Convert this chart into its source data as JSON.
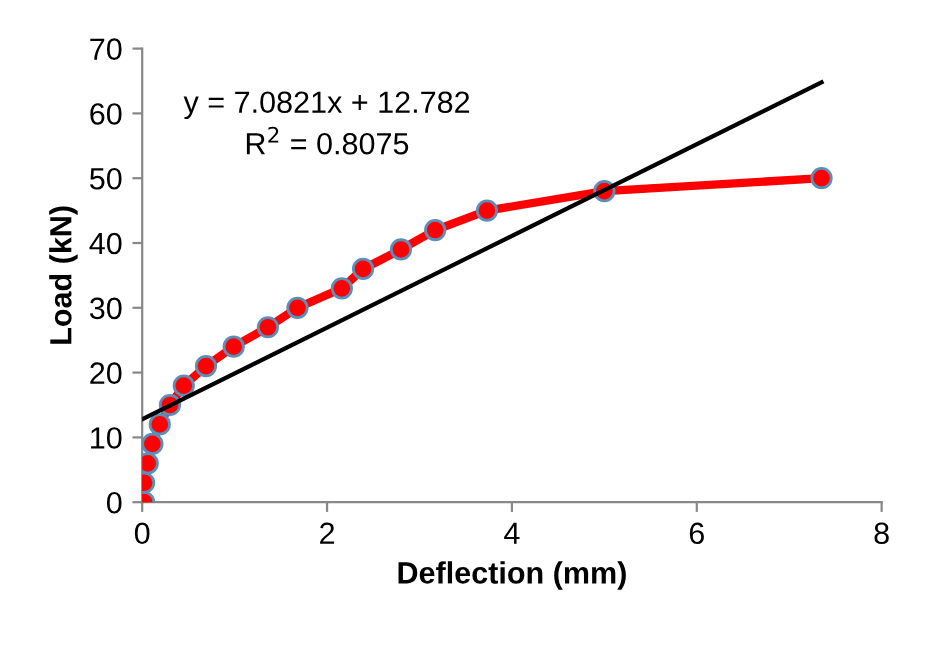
{
  "chart_data": {
    "type": "line",
    "xlabel": "Deflection (mm)",
    "ylabel": "Load (kN)",
    "xlim": [
      0,
      8
    ],
    "xticks": [
      0,
      2,
      4,
      6,
      8
    ],
    "ylim": [
      0,
      70
    ],
    "yticks": [
      0,
      10,
      20,
      30,
      40,
      50,
      60,
      70
    ],
    "grid": false,
    "legend": false,
    "series": [
      {
        "color": "#ff0000",
        "marker": "circle",
        "line_style": "solid",
        "x": [
          0.02,
          0.02,
          0.06,
          0.11,
          0.19,
          0.3,
          0.45,
          0.69,
          0.99,
          1.36,
          1.68,
          2.16,
          2.39,
          2.8,
          3.17,
          3.73,
          5.0,
          7.35
        ],
        "values": [
          0,
          3,
          6,
          9,
          12,
          15,
          18,
          21,
          24,
          27,
          30,
          33,
          36,
          39,
          42,
          45,
          48,
          50
        ]
      },
      {
        "color": "#000000",
        "marker": "none",
        "line_style": "solid",
        "x": [
          0,
          7.35
        ],
        "values": [
          12.8,
          64.8
        ]
      }
    ],
    "annotations": [
      "y = 7.0821x + 12.782\nR$^{2}$ = 0.8075"
    ]
  }
}
